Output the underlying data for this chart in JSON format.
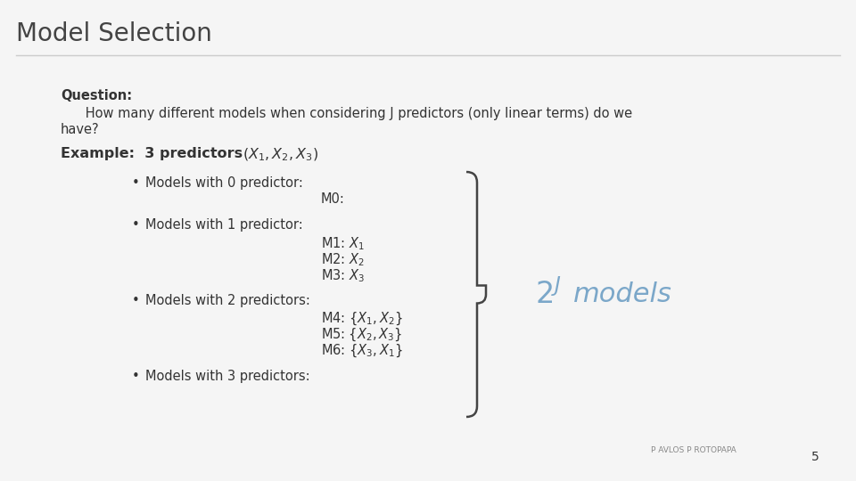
{
  "title": "Model Selection",
  "background_color": "#f5f5f5",
  "title_color": "#444444",
  "question_bold": "Question:",
  "text_color": "#333333",
  "answer_color": "#7ba7c9",
  "footer_text": "Pavlos Protopapa",
  "page_number": "5",
  "title_fontsize": 20,
  "body_fontsize": 10.5,
  "answer_fontsize": 22
}
